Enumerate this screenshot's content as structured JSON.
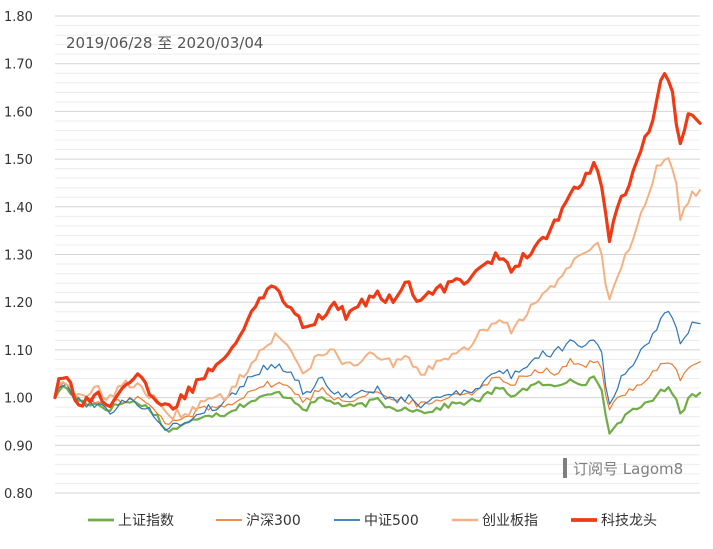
{
  "chart_data": {
    "type": "line",
    "title": "",
    "xlabel": "",
    "ylabel": "",
    "ylim": [
      0.8,
      1.8
    ],
    "yticks": [
      "0.80",
      "0.90",
      "1.00",
      "1.10",
      "1.20",
      "1.30",
      "1.40",
      "1.50",
      "1.60",
      "1.70",
      "1.80"
    ],
    "grid": true,
    "legend_position": "bottom",
    "date_range_text": "2019/06/28 至 2020/03/04",
    "watermark": "订阅号 Lagom8",
    "x_count": 165,
    "series": [
      {
        "name": "上证指数",
        "color": "#70AD47",
        "width": 2.2,
        "keypoints": [
          [
            0,
            1.0
          ],
          [
            2,
            1.02
          ],
          [
            5,
            1.02
          ],
          [
            8,
            1.0
          ],
          [
            12,
            0.99
          ],
          [
            18,
            0.985
          ],
          [
            22,
            0.975
          ],
          [
            28,
            0.99
          ],
          [
            35,
            0.99
          ],
          [
            42,
            0.965
          ],
          [
            46,
            0.93
          ],
          [
            50,
            0.935
          ],
          [
            55,
            0.945
          ],
          [
            62,
            0.965
          ],
          [
            70,
            0.965
          ],
          [
            78,
            0.985
          ],
          [
            86,
            1.0
          ],
          [
            92,
            1.01
          ],
          [
            98,
            1.0
          ],
          [
            104,
            0.975
          ],
          [
            110,
            1.0
          ],
          [
            116,
            0.99
          ],
          [
            122,
            0.98
          ],
          [
            128,
            0.985
          ],
          [
            134,
            0.995
          ],
          [
            140,
            0.975
          ],
          [
            146,
            0.98
          ],
          [
            152,
            0.97
          ],
          [
            158,
            0.975
          ],
          [
            164,
            0.985
          ],
          [
            170,
            0.99
          ],
          [
            176,
            0.995
          ],
          [
            184,
            1.02
          ],
          [
            190,
            1.005
          ],
          [
            196,
            1.02
          ],
          [
            202,
            1.03
          ],
          [
            208,
            1.02
          ],
          [
            214,
            1.04
          ],
          [
            220,
            1.03
          ],
          [
            224,
            1.04
          ],
          [
            227,
            1.025
          ],
          [
            230,
            0.92
          ],
          [
            234,
            0.95
          ],
          [
            240,
            0.97
          ],
          [
            246,
            0.99
          ],
          [
            250,
            1.005
          ],
          [
            254,
            1.02
          ],
          [
            258,
            1.005
          ],
          [
            260,
            0.965
          ],
          [
            264,
            1.005
          ],
          [
            268,
            1.01
          ]
        ]
      },
      {
        "name": "沪深300",
        "color": "#ED7D31",
        "width": 1.2,
        "keypoints": [
          [
            0,
            1.0
          ],
          [
            2,
            1.03
          ],
          [
            5,
            1.025
          ],
          [
            8,
            1.005
          ],
          [
            12,
            0.995
          ],
          [
            18,
            0.99
          ],
          [
            22,
            0.98
          ],
          [
            28,
            0.995
          ],
          [
            35,
            1.0
          ],
          [
            42,
            0.97
          ],
          [
            46,
            0.945
          ],
          [
            50,
            0.95
          ],
          [
            55,
            0.96
          ],
          [
            62,
            0.98
          ],
          [
            70,
            0.98
          ],
          [
            78,
            1.005
          ],
          [
            86,
            1.025
          ],
          [
            92,
            1.03
          ],
          [
            98,
            1.02
          ],
          [
            104,
            0.99
          ],
          [
            110,
            1.02
          ],
          [
            116,
            1.0
          ],
          [
            122,
            0.995
          ],
          [
            128,
            1.005
          ],
          [
            134,
            1.015
          ],
          [
            140,
            0.99
          ],
          [
            146,
            0.995
          ],
          [
            152,
            0.985
          ],
          [
            158,
            0.99
          ],
          [
            164,
            1.005
          ],
          [
            170,
            1.01
          ],
          [
            176,
            1.015
          ],
          [
            184,
            1.045
          ],
          [
            190,
            1.03
          ],
          [
            196,
            1.05
          ],
          [
            202,
            1.06
          ],
          [
            208,
            1.05
          ],
          [
            214,
            1.075
          ],
          [
            220,
            1.065
          ],
          [
            224,
            1.08
          ],
          [
            227,
            1.06
          ],
          [
            230,
            0.97
          ],
          [
            234,
            1.0
          ],
          [
            240,
            1.02
          ],
          [
            246,
            1.04
          ],
          [
            250,
            1.06
          ],
          [
            254,
            1.08
          ],
          [
            258,
            1.065
          ],
          [
            260,
            1.03
          ],
          [
            264,
            1.07
          ],
          [
            268,
            1.075
          ]
        ]
      },
      {
        "name": "中证500",
        "color": "#2E75B6",
        "width": 1.2,
        "keypoints": [
          [
            0,
            1.0
          ],
          [
            2,
            1.03
          ],
          [
            5,
            1.02
          ],
          [
            8,
            1.0
          ],
          [
            12,
            0.99
          ],
          [
            18,
            0.985
          ],
          [
            22,
            0.97
          ],
          [
            28,
            0.99
          ],
          [
            35,
            0.99
          ],
          [
            42,
            0.96
          ],
          [
            46,
            0.935
          ],
          [
            50,
            0.94
          ],
          [
            55,
            0.95
          ],
          [
            62,
            0.975
          ],
          [
            70,
            0.985
          ],
          [
            78,
            1.03
          ],
          [
            86,
            1.06
          ],
          [
            92,
            1.07
          ],
          [
            98,
            1.055
          ],
          [
            104,
            1.005
          ],
          [
            110,
            1.04
          ],
          [
            116,
            1.015
          ],
          [
            122,
            1.0
          ],
          [
            128,
            1.01
          ],
          [
            134,
            1.02
          ],
          [
            140,
            0.99
          ],
          [
            146,
            1.0
          ],
          [
            152,
            0.985
          ],
          [
            158,
            0.995
          ],
          [
            164,
            1.01
          ],
          [
            170,
            1.015
          ],
          [
            176,
            1.02
          ],
          [
            184,
            1.06
          ],
          [
            190,
            1.045
          ],
          [
            196,
            1.07
          ],
          [
            202,
            1.09
          ],
          [
            208,
            1.095
          ],
          [
            214,
            1.12
          ],
          [
            220,
            1.11
          ],
          [
            224,
            1.125
          ],
          [
            227,
            1.1
          ],
          [
            230,
            0.98
          ],
          [
            234,
            1.03
          ],
          [
            240,
            1.07
          ],
          [
            246,
            1.11
          ],
          [
            250,
            1.15
          ],
          [
            254,
            1.19
          ],
          [
            258,
            1.15
          ],
          [
            260,
            1.1
          ],
          [
            264,
            1.15
          ],
          [
            268,
            1.155
          ]
        ]
      },
      {
        "name": "创业板指",
        "color": "#F4B183",
        "width": 2.0,
        "keypoints": [
          [
            0,
            1.0
          ],
          [
            2,
            1.04
          ],
          [
            5,
            1.035
          ],
          [
            8,
            1.0
          ],
          [
            12,
            1.0
          ],
          [
            18,
            1.02
          ],
          [
            22,
            1.0
          ],
          [
            28,
            1.025
          ],
          [
            35,
            1.03
          ],
          [
            42,
            0.99
          ],
          [
            46,
            0.96
          ],
          [
            50,
            0.965
          ],
          [
            55,
            0.97
          ],
          [
            62,
            0.99
          ],
          [
            70,
            1.0
          ],
          [
            78,
            1.05
          ],
          [
            86,
            1.1
          ],
          [
            92,
            1.13
          ],
          [
            98,
            1.1
          ],
          [
            104,
            1.05
          ],
          [
            110,
            1.1
          ],
          [
            116,
            1.09
          ],
          [
            122,
            1.07
          ],
          [
            128,
            1.08
          ],
          [
            134,
            1.09
          ],
          [
            140,
            1.07
          ],
          [
            146,
            1.08
          ],
          [
            152,
            1.05
          ],
          [
            158,
            1.07
          ],
          [
            164,
            1.08
          ],
          [
            170,
            1.1
          ],
          [
            176,
            1.13
          ],
          [
            184,
            1.17
          ],
          [
            190,
            1.14
          ],
          [
            196,
            1.18
          ],
          [
            202,
            1.21
          ],
          [
            208,
            1.24
          ],
          [
            214,
            1.28
          ],
          [
            220,
            1.3
          ],
          [
            224,
            1.32
          ],
          [
            227,
            1.31
          ],
          [
            230,
            1.2
          ],
          [
            234,
            1.26
          ],
          [
            240,
            1.33
          ],
          [
            246,
            1.42
          ],
          [
            250,
            1.48
          ],
          [
            254,
            1.51
          ],
          [
            258,
            1.45
          ],
          [
            260,
            1.37
          ],
          [
            264,
            1.43
          ],
          [
            268,
            1.435
          ]
        ]
      },
      {
        "name": "科技龙头",
        "color": "#EE3B16",
        "width": 3.2,
        "keypoints": [
          [
            0,
            1.0
          ],
          [
            2,
            1.055
          ],
          [
            5,
            1.045
          ],
          [
            8,
            1.0
          ],
          [
            12,
            0.99
          ],
          [
            18,
            1.005
          ],
          [
            22,
            0.985
          ],
          [
            28,
            1.025
          ],
          [
            35,
            1.04
          ],
          [
            42,
            0.99
          ],
          [
            46,
            0.98
          ],
          [
            50,
            0.985
          ],
          [
            55,
            1.01
          ],
          [
            62,
            1.05
          ],
          [
            70,
            1.08
          ],
          [
            78,
            1.15
          ],
          [
            86,
            1.22
          ],
          [
            92,
            1.23
          ],
          [
            98,
            1.19
          ],
          [
            104,
            1.15
          ],
          [
            110,
            1.17
          ],
          [
            116,
            1.19
          ],
          [
            122,
            1.17
          ],
          [
            128,
            1.2
          ],
          [
            134,
            1.22
          ],
          [
            140,
            1.2
          ],
          [
            146,
            1.24
          ],
          [
            152,
            1.2
          ],
          [
            158,
            1.22
          ],
          [
            164,
            1.24
          ],
          [
            170,
            1.25
          ],
          [
            176,
            1.27
          ],
          [
            184,
            1.3
          ],
          [
            190,
            1.27
          ],
          [
            196,
            1.3
          ],
          [
            202,
            1.33
          ],
          [
            208,
            1.37
          ],
          [
            214,
            1.42
          ],
          [
            220,
            1.46
          ],
          [
            224,
            1.49
          ],
          [
            227,
            1.46
          ],
          [
            230,
            1.32
          ],
          [
            234,
            1.4
          ],
          [
            240,
            1.47
          ],
          [
            246,
            1.55
          ],
          [
            250,
            1.62
          ],
          [
            254,
            1.7
          ],
          [
            258,
            1.59
          ],
          [
            260,
            1.525
          ],
          [
            264,
            1.605
          ],
          [
            268,
            1.575
          ]
        ]
      }
    ]
  }
}
